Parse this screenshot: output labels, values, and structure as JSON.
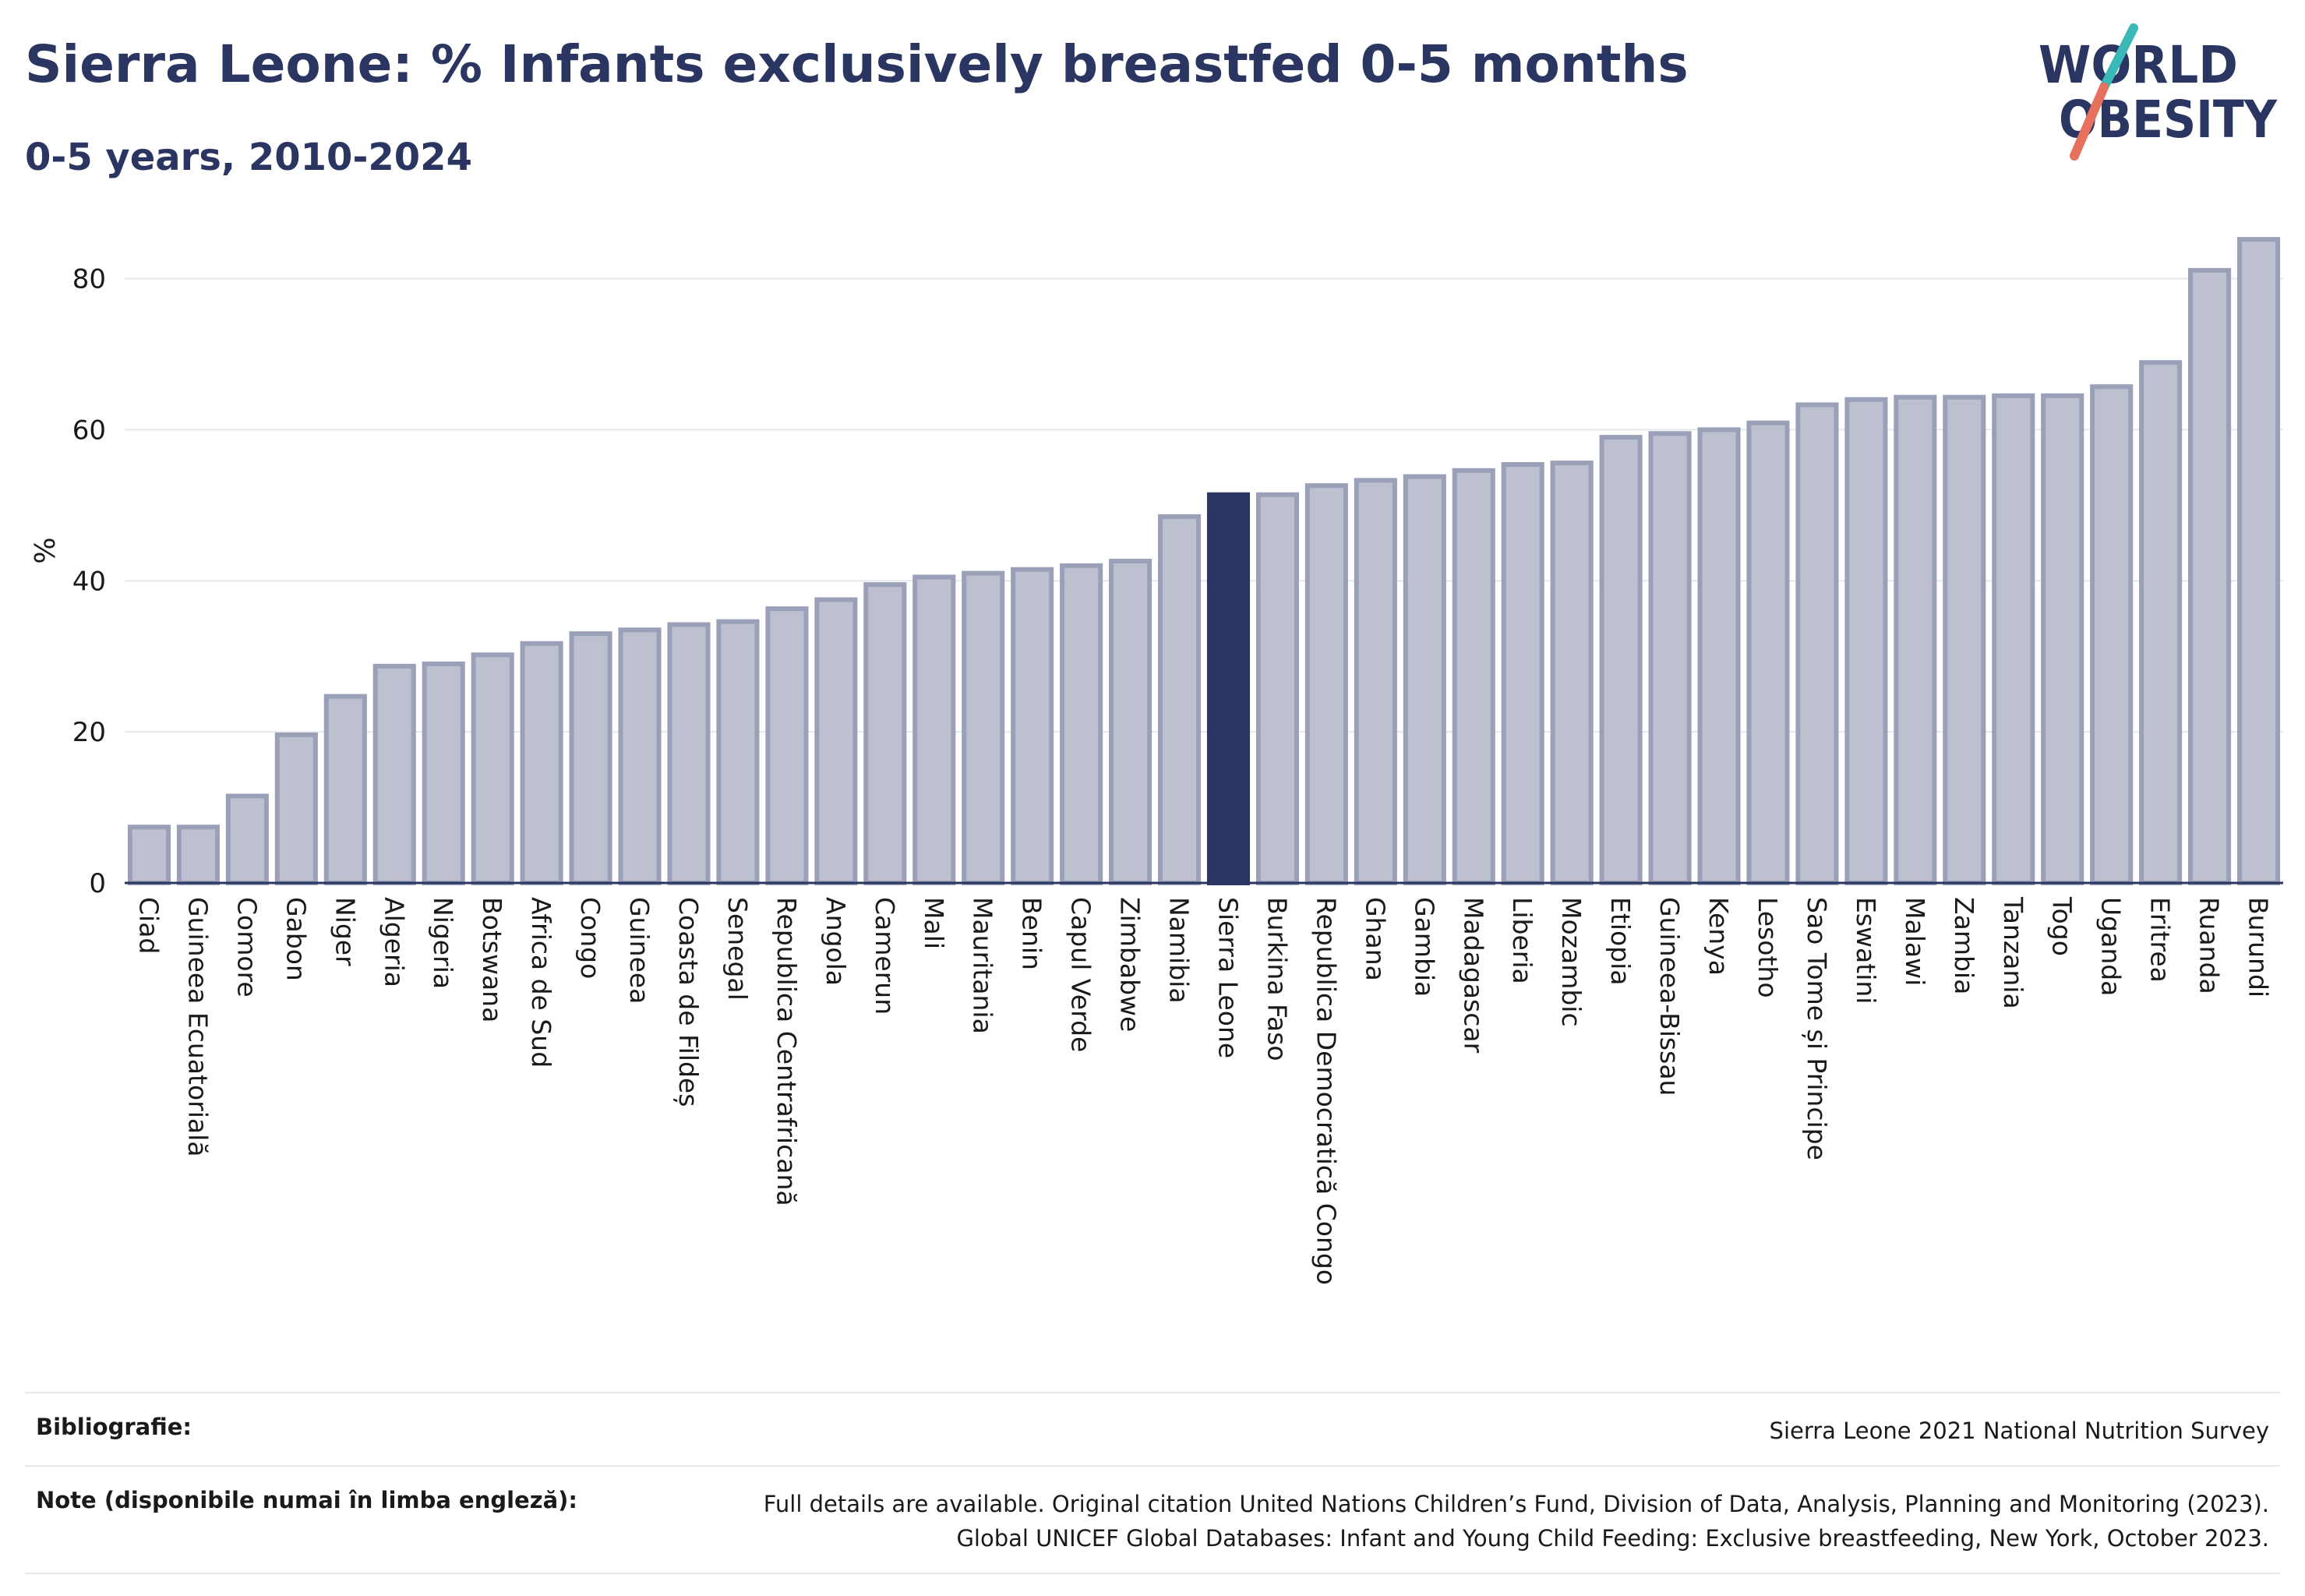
{
  "header": {
    "title": "Sierra Leone: % Infants exclusively breastfed 0-5 months",
    "subtitle": "0-5 years, 2010-2024"
  },
  "logo": {
    "line1": "WORLD",
    "line2": "OBESITY",
    "slash_colors": [
      "#3bb9b8",
      "#e8705e"
    ]
  },
  "colors": {
    "bar": "#bcc0cf",
    "bar_edge": "#9aa0b8",
    "highlight": "#2b3561",
    "grid": "#e6e8ee"
  },
  "chart_data": {
    "type": "bar",
    "title": "Sierra Leone: % Infants exclusively breastfed 0-5 months",
    "subtitle": "0-5 years, 2010-2024",
    "xlabel": "",
    "ylabel": "%",
    "ylim": [
      0,
      88
    ],
    "yticks": [
      0,
      20,
      40,
      60,
      80
    ],
    "grid": true,
    "highlight": "Sierra Leone",
    "categories": [
      "Ciad",
      "Guineea Ecuatorială",
      "Comore",
      "Gabon",
      "Niger",
      "Algeria",
      "Nigeria",
      "Botswana",
      "Africa de Sud",
      "Congo",
      "Guineea",
      "Coasta de Fildeș",
      "Senegal",
      "Republica Centrafricană",
      "Angola",
      "Camerun",
      "Mali",
      "Mauritania",
      "Benin",
      "Capul Verde",
      "Zimbabwe",
      "Namibia",
      "Sierra Leone",
      "Burkina Faso",
      "Republica Democratică Congo",
      "Ghana",
      "Gambia",
      "Madagascar",
      "Liberia",
      "Mozambic",
      "Etiopia",
      "Guineea-Bissau",
      "Kenya",
      "Lesotho",
      "Sao Tome și Principe",
      "Eswatini",
      "Malawi",
      "Zambia",
      "Tanzania",
      "Togo",
      "Uganda",
      "Eritrea",
      "Ruanda",
      "Burundi"
    ],
    "values": [
      7.4,
      7.4,
      11.5,
      19.6,
      24.7,
      28.7,
      29.0,
      30.2,
      31.7,
      33.0,
      33.5,
      34.2,
      34.6,
      36.3,
      37.5,
      39.5,
      40.5,
      41.0,
      41.5,
      42.0,
      42.6,
      48.5,
      51.4,
      51.4,
      52.6,
      53.3,
      53.8,
      54.6,
      55.4,
      55.6,
      59.0,
      59.5,
      60.0,
      60.9,
      63.3,
      64.0,
      64.3,
      64.3,
      64.5,
      64.5,
      65.7,
      68.9,
      81.1,
      85.2
    ]
  },
  "footer": {
    "biblio_label": "Bibliografie:",
    "biblio_value": "Sierra Leone 2021 National Nutrition Survey",
    "notes_label": "Note (disponibile numai în limba engleză):",
    "notes_line1": "Full details are available. Original citation United Nations Children’s Fund, Division of Data, Analysis, Planning and Monitoring (2023).",
    "notes_line2": "Global UNICEF Global Databases: Infant and Young Child Feeding: Exclusive breastfeeding, New York, October 2023."
  }
}
